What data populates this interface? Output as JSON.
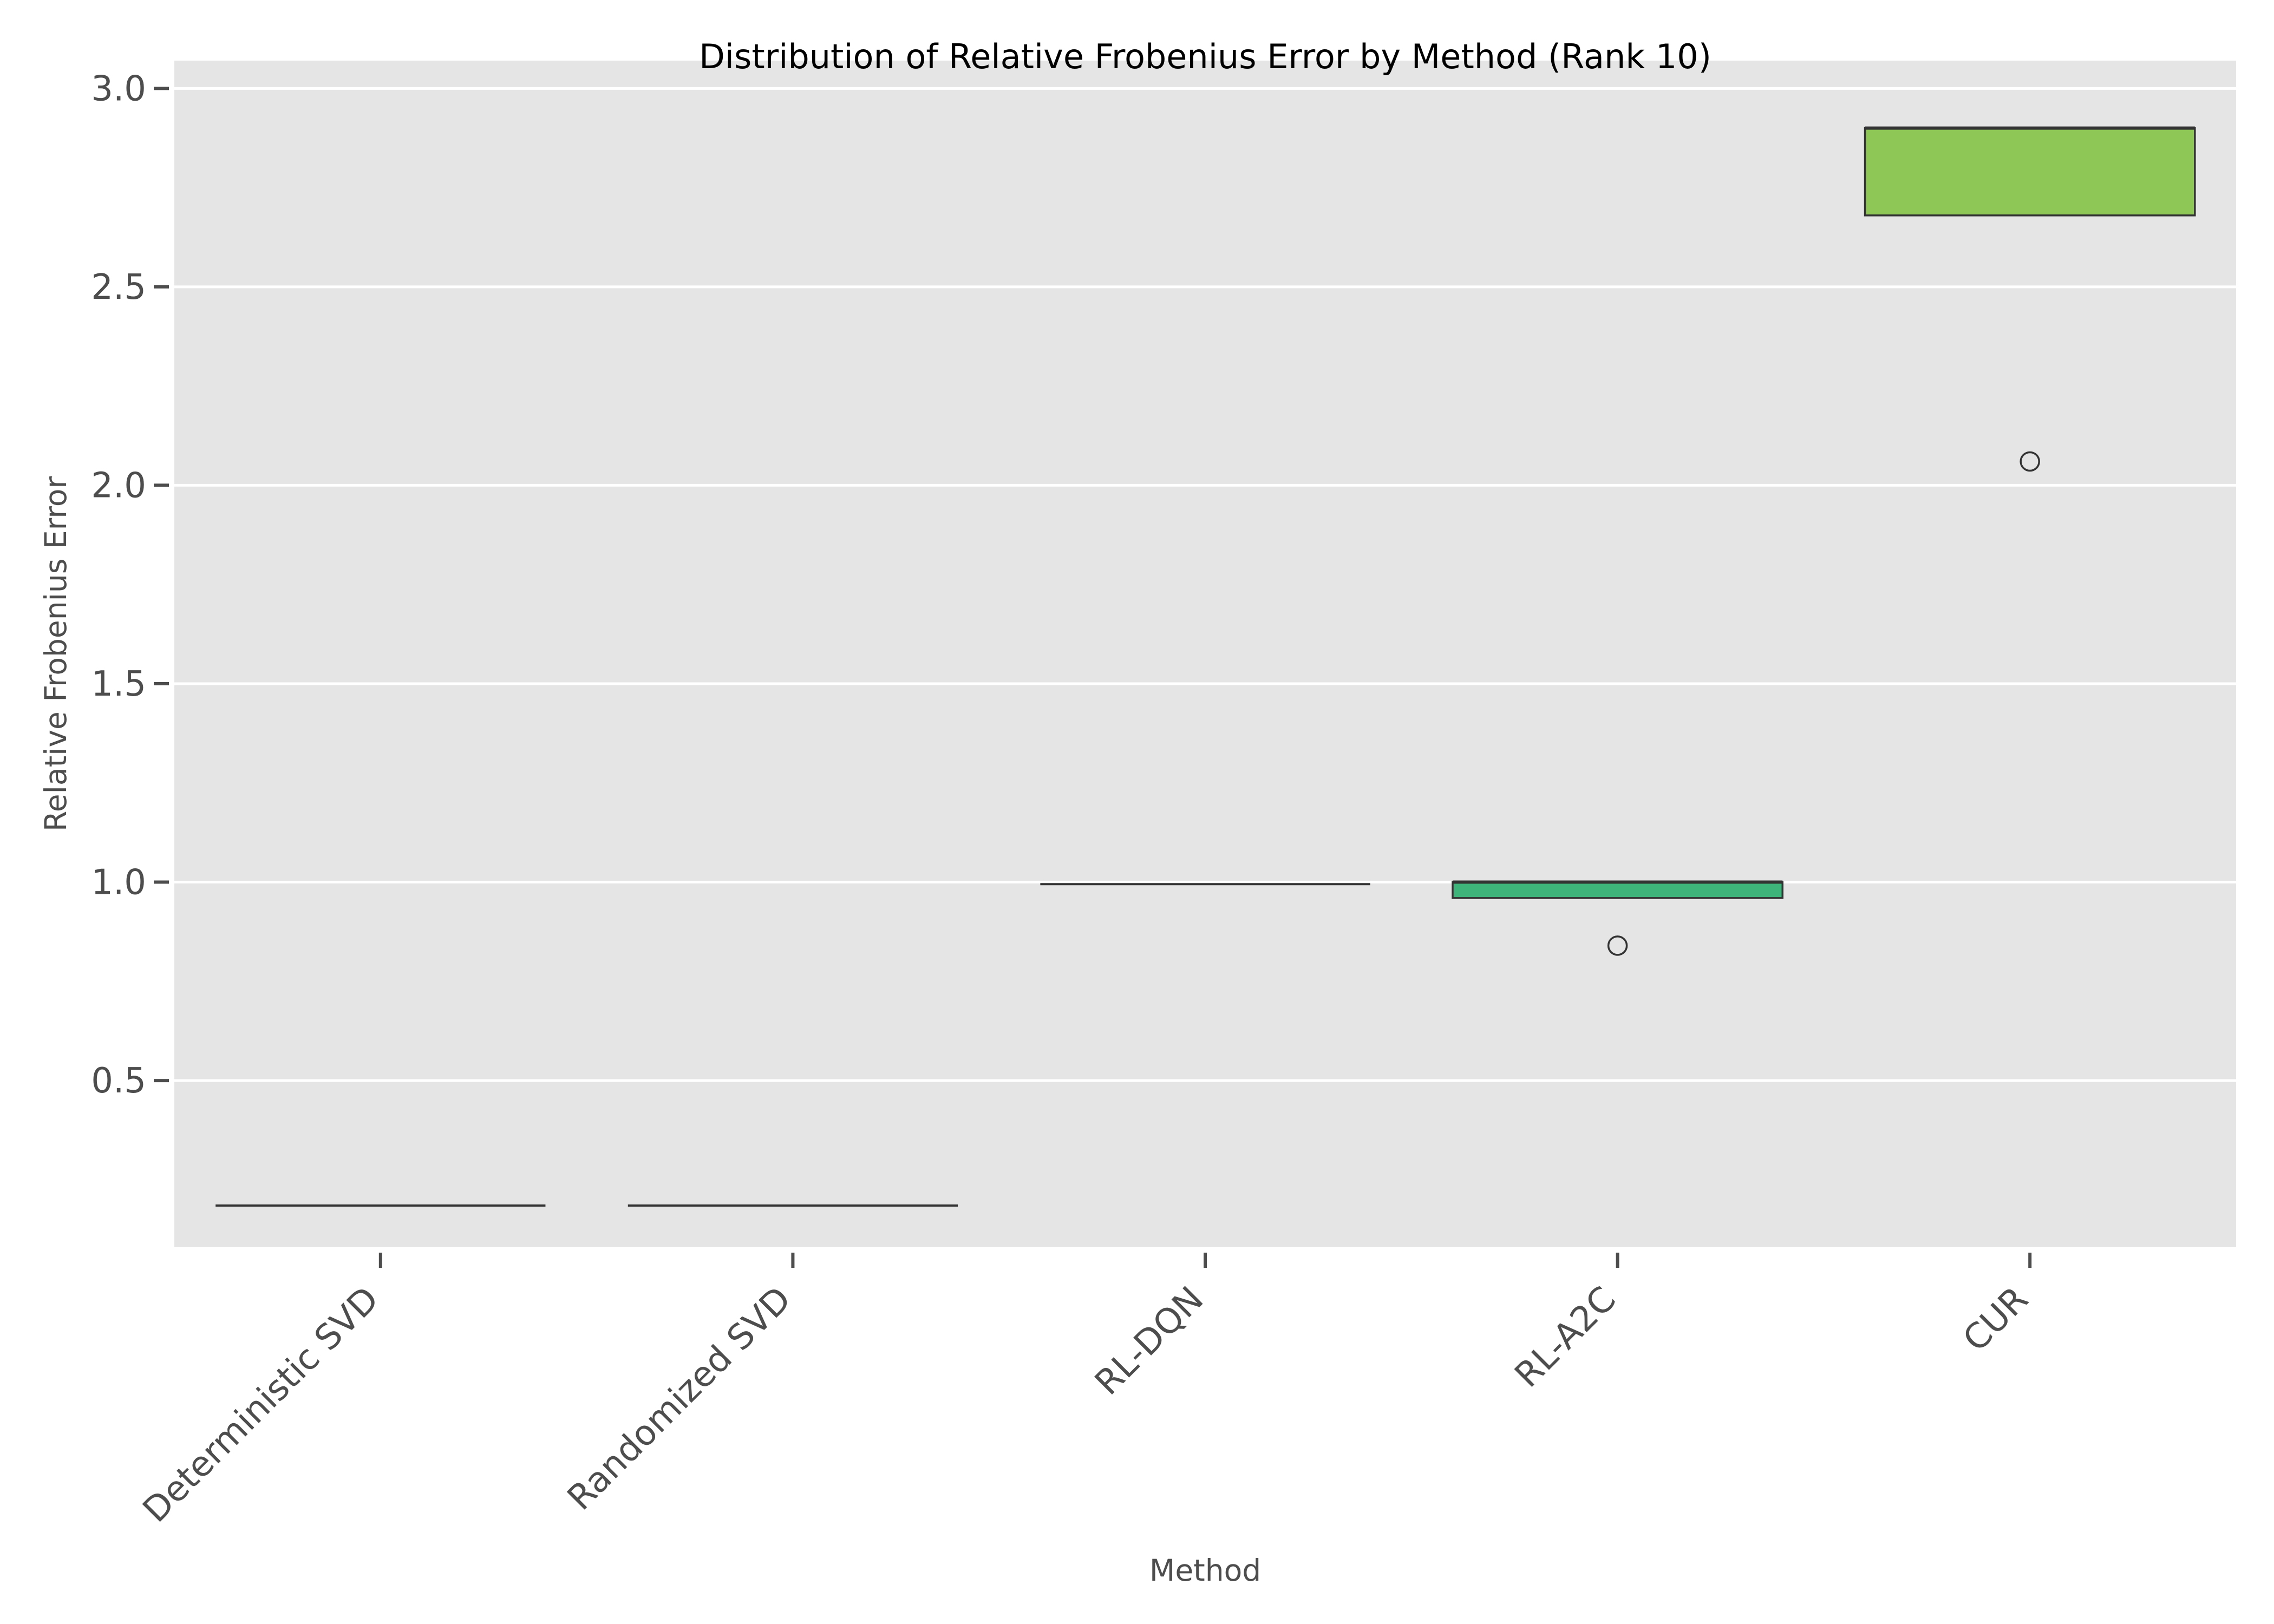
{
  "chart_data": {
    "type": "box",
    "title": "Distribution of Relative Frobenius Error by Method (Rank 10)",
    "xlabel": "Method",
    "ylabel": "Relative Frobenius Error",
    "ylim": [
      0.08,
      3.07
    ],
    "yticks": [
      0.5,
      1.0,
      1.5,
      2.0,
      2.5,
      3.0
    ],
    "ytick_labels": [
      "0.5",
      "1.0",
      "1.5",
      "2.0",
      "2.5",
      "3.0"
    ],
    "categories": [
      "Deterministic SVD",
      "Randomized SVD",
      "RL-DQN",
      "RL-A2C",
      "CUR"
    ],
    "grid": true,
    "boxes": [
      {
        "category": "Deterministic SVD",
        "whisker_low": 0.185,
        "q1": 0.185,
        "median": 0.185,
        "q3": 0.185,
        "whisker_high": 0.185,
        "outliers": [],
        "color": "#3e4989"
      },
      {
        "category": "Randomized SVD",
        "whisker_low": 0.185,
        "q1": 0.185,
        "median": 0.185,
        "q3": 0.185,
        "whisker_high": 0.185,
        "outliers": [],
        "color": "#2a788e"
      },
      {
        "category": "RL-DQN",
        "whisker_low": 0.995,
        "q1": 0.995,
        "median": 0.995,
        "q3": 0.995,
        "whisker_high": 0.995,
        "outliers": [],
        "color": "#22a884"
      },
      {
        "category": "RL-A2C",
        "whisker_low": 0.96,
        "q1": 0.96,
        "median": 1.0,
        "q3": 1.0,
        "whisker_high": 1.0,
        "outliers": [
          0.84
        ],
        "color": "#3fb47a"
      },
      {
        "category": "CUR",
        "whisker_low": 2.68,
        "q1": 2.68,
        "median": 2.9,
        "q3": 2.9,
        "whisker_high": 2.9,
        "outliers": [
          2.06
        ],
        "color": "#8fc756"
      }
    ],
    "colors": {
      "panel_background": "#e5e5e5",
      "grid": "#ffffff",
      "box_edge": "#333333",
      "tick_color": "#4d4d4d"
    }
  }
}
